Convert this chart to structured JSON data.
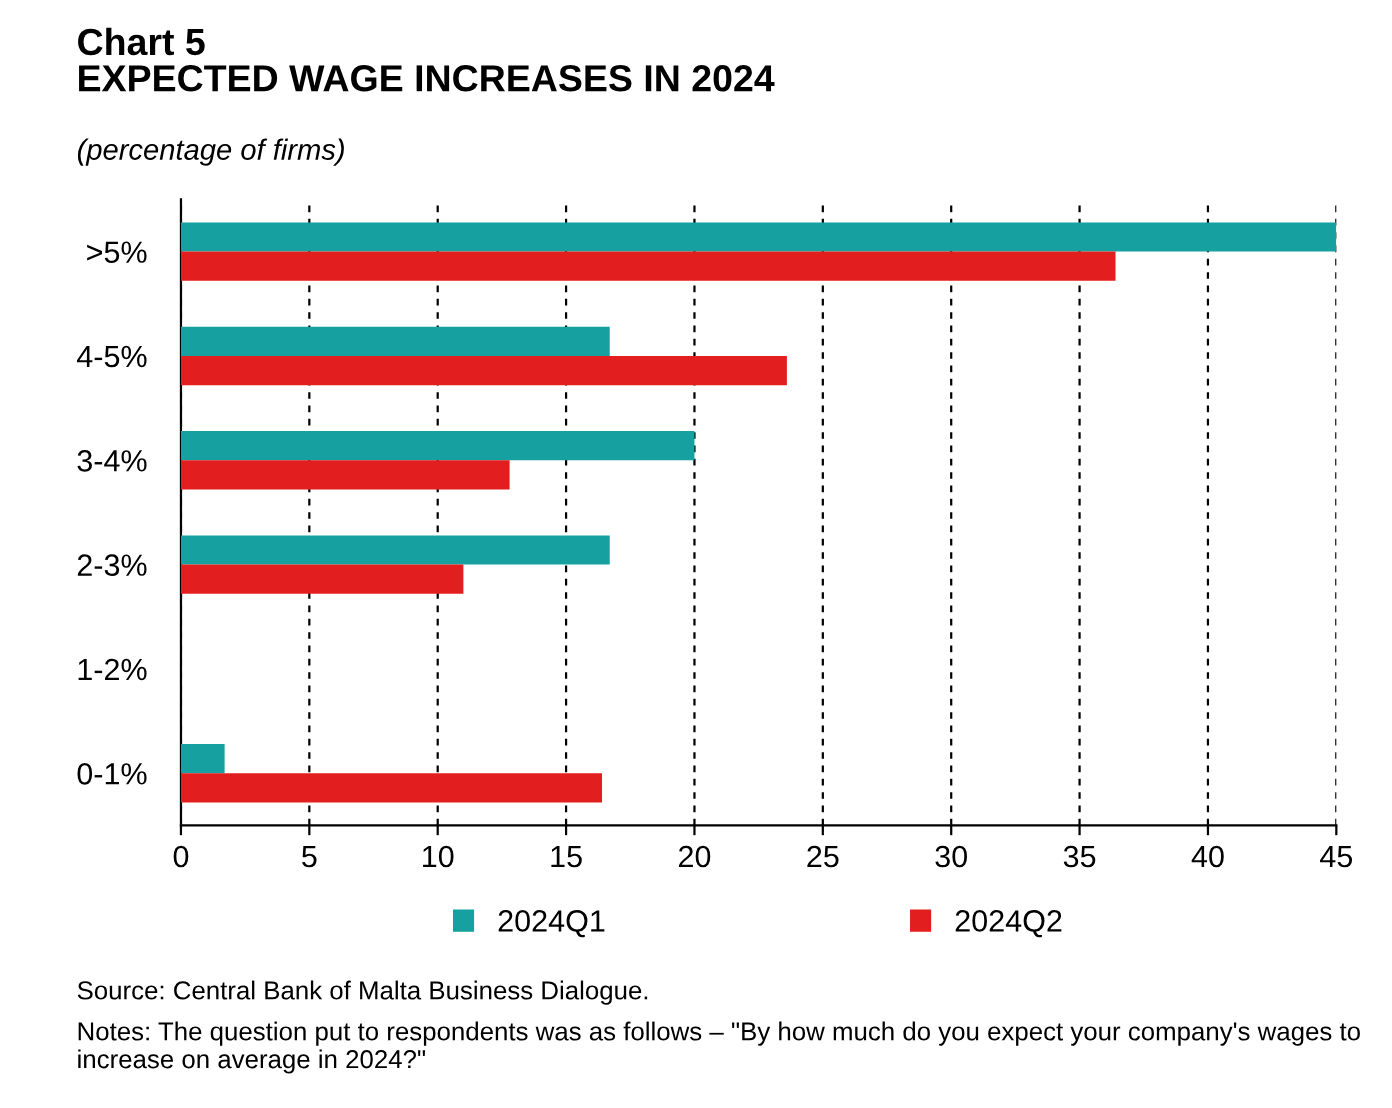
{
  "chart_data": {
    "type": "bar",
    "orientation": "horizontal",
    "title": "Chart 5\nEXPECTED WAGE INCREASES IN 2024",
    "subtitle": "(percentage of firms)",
    "categories": [
      ">5%",
      "4-5%",
      "3-4%",
      "2-3%",
      "1-2%",
      "0-1%"
    ],
    "series": [
      {
        "name": "2024Q1",
        "color": "#17a0a0",
        "values": [
          45,
          16.7,
          20.0,
          16.7,
          0,
          1.7
        ]
      },
      {
        "name": "2024Q2",
        "color": "#e31e1e",
        "values": [
          36.4,
          23.6,
          12.8,
          11.0,
          0,
          16.4
        ]
      }
    ],
    "xlim": [
      0,
      45
    ],
    "xticks": [
      0,
      5,
      10,
      15,
      20,
      25,
      30,
      35,
      40,
      45
    ],
    "grid": "x",
    "legend": "bottom",
    "annotations": [
      "Source: Central Bank of Malta Business Dialogue.",
      "Notes: The question put to respondents was as follows – \"By how much do you expect your company's wages to increase on average in 2024?\""
    ]
  }
}
